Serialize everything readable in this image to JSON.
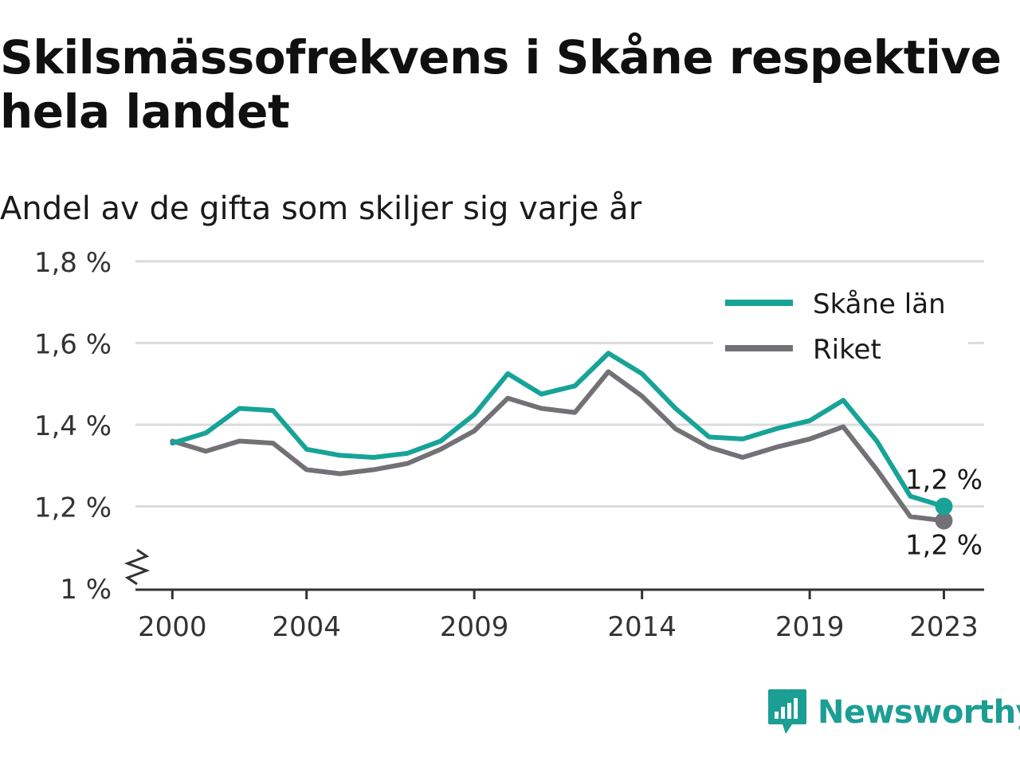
{
  "title": "Skilsmässofrekvens i Skåne respektive hela landet",
  "subtitle": "Andel av de gifta som skiljer sig varje år",
  "brand": {
    "name": "Newsworthy",
    "color": "#1b9e94"
  },
  "chart_data": {
    "type": "line",
    "x": [
      2000,
      2001,
      2002,
      2003,
      2004,
      2005,
      2006,
      2007,
      2008,
      2009,
      2010,
      2011,
      2012,
      2013,
      2014,
      2015,
      2016,
      2017,
      2018,
      2019,
      2020,
      2021,
      2022,
      2023
    ],
    "x_tick_labels": [
      "2000",
      "2004",
      "2009",
      "2014",
      "2019",
      "2023"
    ],
    "x_ticks": [
      2000,
      2004,
      2009,
      2014,
      2019,
      2023
    ],
    "y_tick_labels": [
      "1 %",
      "1,2 %",
      "1,4 %",
      "1,6 %",
      "1,8 %"
    ],
    "y_ticks": [
      1.0,
      1.2,
      1.4,
      1.6,
      1.8
    ],
    "ylim": [
      1.0,
      1.8
    ],
    "xlim": [
      1998.9,
      2024.2
    ],
    "grid": true,
    "axis_break": true,
    "legend_position": "top-right",
    "series": [
      {
        "name": "Skåne län",
        "color": "#17a398",
        "values": [
          1.355,
          1.38,
          1.44,
          1.435,
          1.34,
          1.325,
          1.32,
          1.33,
          1.36,
          1.425,
          1.525,
          1.475,
          1.495,
          1.575,
          1.525,
          1.44,
          1.37,
          1.365,
          1.39,
          1.41,
          1.46,
          1.36,
          1.225,
          1.2
        ],
        "end_label": "1,2 %"
      },
      {
        "name": "Riket",
        "color": "#737176",
        "values": [
          1.36,
          1.335,
          1.36,
          1.355,
          1.29,
          1.28,
          1.29,
          1.305,
          1.34,
          1.385,
          1.465,
          1.44,
          1.43,
          1.53,
          1.47,
          1.39,
          1.345,
          1.32,
          1.345,
          1.365,
          1.395,
          1.29,
          1.175,
          1.165
        ],
        "end_label": "1,2 %"
      }
    ]
  }
}
